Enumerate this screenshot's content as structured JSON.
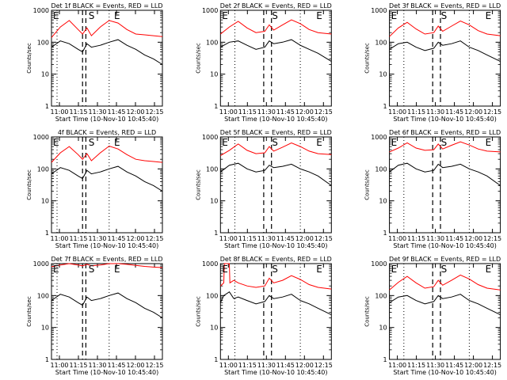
{
  "chart_data": [
    {
      "type": "line",
      "title": "Det 1f BLACK = Events, RED = LLD",
      "xlabel": "Start Time (10-Nov-10 10:45:40)",
      "ylabel": "Counts/sec",
      "xticks": [
        "11:00",
        "11:15",
        "11:30",
        "11:45",
        "12:00",
        "12:15"
      ],
      "yticks": [
        "1",
        "10",
        "100",
        "1000"
      ],
      "xlim": [
        0,
        100
      ],
      "ylim": [
        1,
        1000
      ],
      "yscale": "log",
      "markers": [
        {
          "label": "E",
          "x": 0
        },
        {
          "label": "S",
          "x": 32
        },
        {
          "label": "E",
          "x": 55
        }
      ],
      "dotted_x": [
        5,
        52
      ],
      "dashed_x": [
        28,
        31
      ],
      "series": [
        {
          "name": "RED",
          "color": "#ff0000",
          "x": [
            0,
            8,
            16,
            24,
            28,
            32,
            36,
            44,
            52,
            60,
            68,
            76,
            84,
            92,
            100
          ],
          "y": [
            140,
            300,
            480,
            250,
            180,
            280,
            160,
            300,
            480,
            400,
            250,
            180,
            170,
            160,
            150
          ]
        },
        {
          "name": "BLACK",
          "color": "#000000",
          "x": [
            0,
            8,
            16,
            24,
            28,
            32,
            36,
            44,
            52,
            60,
            68,
            76,
            84,
            92,
            100
          ],
          "y": [
            70,
            110,
            90,
            60,
            50,
            90,
            70,
            80,
            100,
            120,
            80,
            60,
            40,
            30,
            20
          ]
        }
      ]
    },
    {
      "type": "line",
      "title": "Det 2f BLACK = Events, RED = LLD",
      "xlabel": "Start Time (10-Nov-10 10:45:40)",
      "ylabel": "Counts/sec",
      "xticks": [
        "11:00",
        "11:15",
        "11:30",
        "11:45",
        "12:00",
        "12:15"
      ],
      "yticks": [
        "1",
        "10",
        "100",
        "1000"
      ],
      "xlim": [
        0,
        100
      ],
      "ylim": [
        1,
        1000
      ],
      "yscale": "log",
      "markers": [
        {
          "label": "E",
          "x": 0
        },
        {
          "label": "S",
          "x": 45
        },
        {
          "label": "E",
          "x": 85
        }
      ],
      "dotted_x": [
        13,
        72
      ],
      "dashed_x": [
        39,
        46
      ],
      "series": [
        {
          "name": "RED",
          "color": "#ff0000",
          "x": [
            0,
            8,
            16,
            24,
            32,
            40,
            44,
            48,
            56,
            64,
            72,
            80,
            88,
            100
          ],
          "y": [
            180,
            300,
            450,
            280,
            200,
            220,
            350,
            240,
            350,
            500,
            380,
            250,
            200,
            180
          ]
        },
        {
          "name": "BLACK",
          "color": "#000000",
          "x": [
            0,
            8,
            16,
            24,
            32,
            40,
            44,
            48,
            56,
            64,
            72,
            80,
            88,
            100
          ],
          "y": [
            70,
            100,
            110,
            80,
            60,
            70,
            110,
            90,
            100,
            120,
            80,
            60,
            45,
            25
          ]
        }
      ]
    },
    {
      "type": "line",
      "title": "Det 3f BLACK = Events, RED = LLD",
      "xlabel": "Start Time (10-Nov-10 10:45:40)",
      "ylabel": "Counts/sec",
      "xticks": [
        "11:00",
        "11:15",
        "11:30",
        "11:45",
        "12:00",
        "12:15"
      ],
      "yticks": [
        "1",
        "10",
        "100",
        "1000"
      ],
      "xlim": [
        0,
        100
      ],
      "ylim": [
        1,
        1000
      ],
      "yscale": "log",
      "markers": [
        {
          "label": "E",
          "x": 0
        },
        {
          "label": "S",
          "x": 45
        },
        {
          "label": "E",
          "x": 85
        }
      ],
      "dotted_x": [
        13,
        72
      ],
      "dashed_x": [
        39,
        46
      ],
      "series": [
        {
          "name": "RED",
          "color": "#ff0000",
          "x": [
            0,
            8,
            16,
            24,
            32,
            40,
            44,
            48,
            56,
            64,
            72,
            80,
            88,
            100
          ],
          "y": [
            150,
            280,
            420,
            260,
            180,
            200,
            320,
            220,
            320,
            460,
            350,
            230,
            180,
            160
          ]
        },
        {
          "name": "BLACK",
          "color": "#000000",
          "x": [
            0,
            8,
            16,
            24,
            32,
            40,
            44,
            48,
            56,
            64,
            72,
            80,
            88,
            100
          ],
          "y": [
            60,
            90,
            100,
            70,
            55,
            65,
            100,
            80,
            90,
            110,
            70,
            55,
            40,
            25
          ]
        }
      ]
    },
    {
      "type": "line",
      "title": "4f BLACK = Events, RED = LLD",
      "xlabel": "Start Time (10-Nov-10 10:45:40)",
      "ylabel": "Counts/sec",
      "xticks": [
        "11:00",
        "11:15",
        "11:30",
        "11:45",
        "12:00",
        "12:15"
      ],
      "yticks": [
        "1",
        "10",
        "100",
        "1000"
      ],
      "xlim": [
        0,
        100
      ],
      "ylim": [
        1,
        1000
      ],
      "yscale": "log",
      "markers": [
        {
          "label": "E",
          "x": 0
        },
        {
          "label": "S",
          "x": 32
        },
        {
          "label": "E",
          "x": 55
        }
      ],
      "dotted_x": [
        5,
        52
      ],
      "dashed_x": [
        28,
        31
      ],
      "series": [
        {
          "name": "RED",
          "color": "#ff0000",
          "x": [
            0,
            8,
            16,
            24,
            28,
            32,
            36,
            44,
            52,
            60,
            68,
            76,
            84,
            92,
            100
          ],
          "y": [
            160,
            320,
            500,
            280,
            200,
            300,
            180,
            320,
            520,
            420,
            280,
            200,
            180,
            170,
            160
          ]
        },
        {
          "name": "BLACK",
          "color": "#000000",
          "x": [
            0,
            8,
            16,
            24,
            28,
            32,
            36,
            44,
            52,
            60,
            68,
            76,
            84,
            92,
            100
          ],
          "y": [
            70,
            110,
            90,
            60,
            50,
            90,
            70,
            80,
            100,
            120,
            80,
            60,
            40,
            30,
            20
          ]
        }
      ]
    },
    {
      "type": "line",
      "title": "Det 5f BLACK = Events, RED = LLD",
      "xlabel": "Start Time (10-Nov-10 10:45:40)",
      "ylabel": "Counts/sec",
      "xticks": [
        "11:00",
        "11:15",
        "11:30",
        "11:45",
        "12:00",
        "12:15"
      ],
      "yticks": [
        "1",
        "10",
        "100",
        "1000"
      ],
      "xlim": [
        0,
        100
      ],
      "ylim": [
        1,
        1000
      ],
      "yscale": "log",
      "markers": [
        {
          "label": "E",
          "x": 0
        },
        {
          "label": "S",
          "x": 45
        },
        {
          "label": "E",
          "x": 85
        }
      ],
      "dotted_x": [
        13,
        72
      ],
      "dashed_x": [
        39,
        46
      ],
      "series": [
        {
          "name": "RED",
          "color": "#ff0000",
          "x": [
            0,
            8,
            16,
            24,
            32,
            40,
            44,
            48,
            56,
            64,
            72,
            80,
            88,
            100
          ],
          "y": [
            260,
            380,
            600,
            380,
            300,
            320,
            500,
            360,
            480,
            650,
            500,
            360,
            300,
            280
          ]
        },
        {
          "name": "BLACK",
          "color": "#000000",
          "x": [
            0,
            8,
            16,
            24,
            32,
            40,
            44,
            48,
            56,
            64,
            72,
            80,
            88,
            100
          ],
          "y": [
            80,
            130,
            150,
            100,
            80,
            90,
            130,
            110,
            120,
            140,
            100,
            80,
            60,
            30
          ]
        }
      ]
    },
    {
      "type": "line",
      "title": "Det 6f BLACK = Events, RED = LLD",
      "xlabel": "Start Time (10-Nov-10 10:45:40)",
      "ylabel": "Counts/sec",
      "xticks": [
        "11:00",
        "11:15",
        "11:30",
        "11:45",
        "12:00",
        "12:15"
      ],
      "yticks": [
        "1",
        "10",
        "100",
        "1000"
      ],
      "xlim": [
        0,
        100
      ],
      "ylim": [
        1,
        1000
      ],
      "yscale": "log",
      "markers": [
        {
          "label": "E",
          "x": 0
        },
        {
          "label": "S",
          "x": 45
        },
        {
          "label": "E",
          "x": 85
        }
      ],
      "dotted_x": [
        13,
        72
      ],
      "dashed_x": [
        39,
        46
      ],
      "series": [
        {
          "name": "RED",
          "color": "#ff0000",
          "x": [
            0,
            8,
            16,
            24,
            32,
            40,
            44,
            48,
            56,
            64,
            72,
            80,
            88,
            100
          ],
          "y": [
            340,
            450,
            650,
            450,
            380,
            400,
            600,
            420,
            550,
            700,
            560,
            420,
            360,
            340
          ]
        },
        {
          "name": "BLACK",
          "color": "#000000",
          "x": [
            0,
            8,
            16,
            24,
            32,
            40,
            44,
            48,
            56,
            64,
            72,
            80,
            88,
            100
          ],
          "y": [
            80,
            130,
            150,
            100,
            80,
            90,
            140,
            110,
            120,
            140,
            100,
            80,
            60,
            30
          ]
        }
      ]
    },
    {
      "type": "line",
      "title": "Det 7f BLACK = Events, RED = LLD",
      "xlabel": "Start Time (10-Nov-10 10:45:40)",
      "ylabel": "Counts/sec",
      "xticks": [
        "11:00",
        "11:15",
        "11:30",
        "11:45",
        "12:00",
        "12:15"
      ],
      "yticks": [
        "1",
        "10",
        "100",
        "1000"
      ],
      "xlim": [
        0,
        100
      ],
      "ylim": [
        1,
        1000
      ],
      "yscale": "log",
      "markers": [
        {
          "label": "E",
          "x": 0
        },
        {
          "label": "S",
          "x": 32
        },
        {
          "label": "E",
          "x": 55
        }
      ],
      "dotted_x": [
        5,
        52
      ],
      "dashed_x": [
        28,
        31
      ],
      "series": [
        {
          "name": "RED",
          "color": "#ff0000",
          "x": [
            0,
            8,
            16,
            24,
            28,
            32,
            36,
            44,
            52,
            60,
            68,
            76,
            84,
            92,
            100
          ],
          "y": [
            800,
            900,
            1000,
            900,
            850,
            950,
            850,
            900,
            1000,
            1000,
            950,
            880,
            820,
            780,
            750
          ]
        },
        {
          "name": "BLACK",
          "color": "#000000",
          "x": [
            0,
            8,
            16,
            24,
            28,
            32,
            36,
            44,
            52,
            60,
            68,
            76,
            84,
            92,
            100
          ],
          "y": [
            70,
            110,
            90,
            60,
            50,
            90,
            70,
            80,
            100,
            120,
            80,
            60,
            40,
            30,
            20
          ]
        }
      ]
    },
    {
      "type": "line",
      "title": "Det 8f BLACK = Events, RED = LLD",
      "xlabel": "Start Time (10-Nov-10 10:45:40)",
      "ylabel": "Counts/sec",
      "xticks": [
        "11:00",
        "11:15",
        "11:30",
        "11:45",
        "12:00",
        "12:15"
      ],
      "yticks": [
        "1",
        "10",
        "100",
        "1000"
      ],
      "xlim": [
        0,
        100
      ],
      "ylim": [
        1,
        1000
      ],
      "yscale": "log",
      "markers": [
        {
          "label": "E",
          "x": 0
        },
        {
          "label": "S",
          "x": 45
        },
        {
          "label": "E",
          "x": 85
        }
      ],
      "dotted_x": [
        13,
        72
      ],
      "dashed_x": [
        39,
        46
      ],
      "series": [
        {
          "name": "RED",
          "color": "#ff0000",
          "x": [
            0,
            3,
            3.5,
            8,
            8.5,
            12,
            16,
            24,
            32,
            40,
            44,
            48,
            56,
            64,
            72,
            80,
            88,
            100
          ],
          "y": [
            200,
            250,
            1000,
            1000,
            250,
            300,
            250,
            200,
            180,
            200,
            350,
            250,
            300,
            420,
            320,
            220,
            180,
            160
          ]
        },
        {
          "name": "BLACK",
          "color": "#000000",
          "x": [
            0,
            3,
            8,
            12,
            16,
            24,
            32,
            40,
            44,
            48,
            56,
            64,
            72,
            80,
            88,
            100
          ],
          "y": [
            60,
            100,
            130,
            80,
            90,
            70,
            55,
            65,
            100,
            80,
            90,
            110,
            70,
            55,
            40,
            25
          ]
        }
      ]
    },
    {
      "type": "line",
      "title": "Det 9f BLACK = Events, RED = LLD",
      "xlabel": "Start Time (10-Nov-10 10:45:40)",
      "ylabel": "Counts/sec",
      "xticks": [
        "11:00",
        "11:15",
        "11:30",
        "11:45",
        "12:00",
        "12:15"
      ],
      "yticks": [
        "1",
        "10",
        "100",
        "1000"
      ],
      "xlim": [
        0,
        100
      ],
      "ylim": [
        1,
        1000
      ],
      "yscale": "log",
      "markers": [
        {
          "label": "E",
          "x": 0
        },
        {
          "label": "S",
          "x": 45
        },
        {
          "label": "E",
          "x": 85
        }
      ],
      "dotted_x": [
        13,
        72
      ],
      "dashed_x": [
        39,
        46
      ],
      "series": [
        {
          "name": "RED",
          "color": "#ff0000",
          "x": [
            0,
            8,
            16,
            24,
            32,
            40,
            44,
            48,
            56,
            64,
            72,
            80,
            88,
            100
          ],
          "y": [
            150,
            260,
            400,
            250,
            170,
            190,
            300,
            210,
            300,
            440,
            330,
            220,
            170,
            150
          ]
        },
        {
          "name": "BLACK",
          "color": "#000000",
          "x": [
            0,
            8,
            16,
            24,
            32,
            40,
            44,
            48,
            56,
            64,
            72,
            80,
            88,
            100
          ],
          "y": [
            60,
            90,
            100,
            70,
            55,
            65,
            100,
            80,
            90,
            110,
            70,
            55,
            40,
            25
          ]
        }
      ]
    }
  ]
}
